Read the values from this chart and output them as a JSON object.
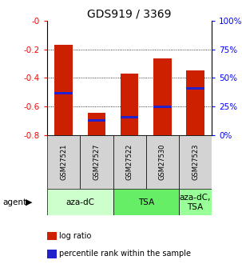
{
  "title": "GDS919 / 3369",
  "samples": [
    "GSM27521",
    "GSM27527",
    "GSM27522",
    "GSM27530",
    "GSM27523"
  ],
  "bar_tops": [
    -0.17,
    -0.645,
    -0.37,
    -0.265,
    -0.345
  ],
  "bar_bottom": -0.8,
  "percentile_values": [
    -0.505,
    -0.695,
    -0.672,
    -0.6,
    -0.472
  ],
  "ylim": [
    -0.8,
    0.0
  ],
  "yticks_left": [
    0.0,
    -0.2,
    -0.4,
    -0.6,
    -0.8
  ],
  "ytick_labels_left": [
    "-0",
    "-0.2",
    "-0.4",
    "-0.6",
    "-0.8"
  ],
  "right_ytick_pcts": [
    100,
    75,
    50,
    25,
    0
  ],
  "bar_color": "#cc2000",
  "blue_color": "#2222cc",
  "group_colors": [
    "#ccffcc",
    "#66ee66",
    "#99ff99"
  ],
  "groups": [
    {
      "label": "aza-dC",
      "start": 0,
      "end": 1,
      "color_idx": 0
    },
    {
      "label": "TSA",
      "start": 2,
      "end": 3,
      "color_idx": 1
    },
    {
      "label": "aza-dC,\nTSA",
      "start": 4,
      "end": 4,
      "color_idx": 2
    }
  ],
  "legend_items": [
    {
      "color": "#cc2000",
      "label": "log ratio"
    },
    {
      "color": "#2222cc",
      "label": "percentile rank within the sample"
    }
  ],
  "title_fontsize": 10,
  "tick_fontsize": 7.5,
  "sample_fontsize": 6,
  "group_fontsize": 7.5,
  "legend_fontsize": 7
}
